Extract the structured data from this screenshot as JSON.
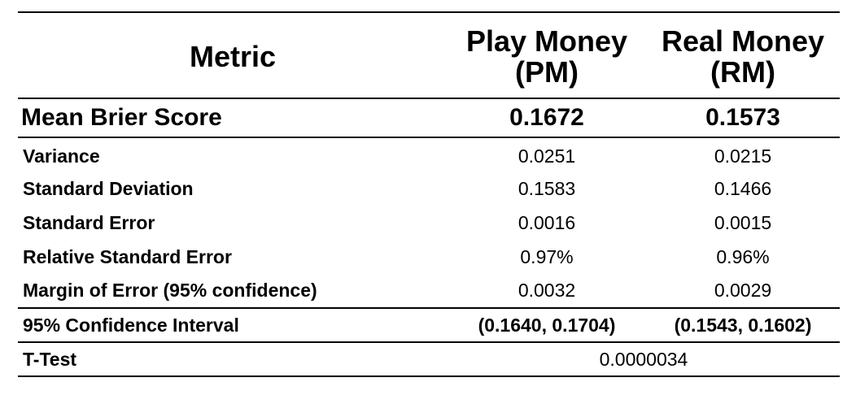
{
  "table": {
    "headers": {
      "metric": "Metric",
      "pm_line1": "Play Money",
      "pm_line2": "(PM)",
      "rm_line1": "Real Money",
      "rm_line2": "(RM)"
    },
    "mean_brier": {
      "label": "Mean Brier Score",
      "pm": "0.1672",
      "rm": "0.1573"
    },
    "rows": [
      {
        "label": "Variance",
        "pm": "0.0251",
        "rm": "0.0215"
      },
      {
        "label": "Standard Deviation",
        "pm": "0.1583",
        "rm": "0.1466"
      },
      {
        "label": "Standard Error",
        "pm": "0.0016",
        "rm": "0.0015"
      },
      {
        "label": "Relative Standard Error",
        "pm": "0.97%",
        "rm": "0.96%"
      },
      {
        "label": "Margin of Error (95% confidence)",
        "pm": "0.0032",
        "rm": "0.0029"
      }
    ],
    "confidence_interval": {
      "label": "95% Confidence Interval",
      "pm": "(0.1640, 0.1704)",
      "rm": "(0.1543, 0.1602)"
    },
    "t_test": {
      "label": "T-Test",
      "value": "0.0000034"
    }
  }
}
